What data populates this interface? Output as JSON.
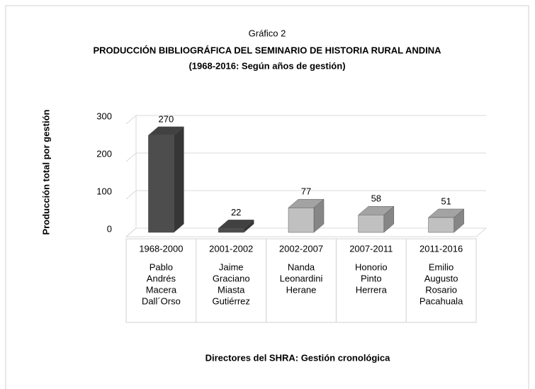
{
  "chart_data": {
    "type": "bar3d",
    "title": [
      "Gráfico 2",
      "PRODUCCIÓN BIBLIOGRÁFICA DEL SEMINARIO DE HISTORIA RURAL ANDINA",
      "(1968-2016: Según años de gestión)"
    ],
    "ylabel": "Producción total por gestión",
    "xlabel": "Directores del SHRA: Gestión cronológica",
    "categories": [
      [
        "1968-2000",
        "Pablo",
        "Andrés",
        "Macera",
        "Dall´Orso"
      ],
      [
        "2001-2002",
        "Jaime",
        "Graciano",
        "Miasta",
        "Gutiérrez"
      ],
      [
        "2002-2007",
        "Nanda",
        "Leonardini",
        "Herane"
      ],
      [
        "2007-2011",
        "Honorio",
        "Pinto",
        "Herrera"
      ],
      [
        "2011-2016",
        "Emilio",
        "Augusto",
        "Rosario",
        "Pacahuala"
      ]
    ],
    "values": [
      270,
      22,
      77,
      58,
      51
    ],
    "colors": [
      "#4d4d4d",
      "#4d4d4d",
      "#c0c0c0",
      "#c0c0c0",
      "#c0c0c0"
    ],
    "ylim": [
      0,
      300
    ],
    "yticks": [
      0,
      100,
      200,
      300
    ],
    "grid": true
  }
}
